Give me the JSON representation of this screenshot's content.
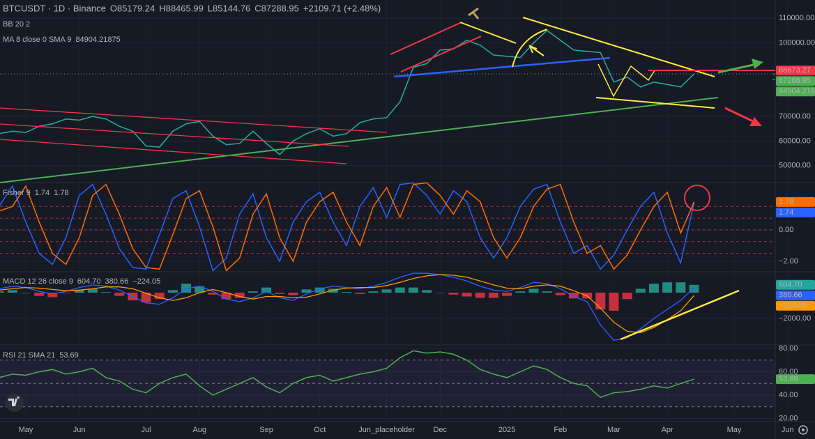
{
  "chart_data": [
    {
      "type": "line",
      "title": "BTCUSDT · 1D · Binance",
      "ohlc": [
        "O85179.24",
        "H88465.99",
        "L85144.76",
        "C87288.95"
      ],
      "change": "+2109.71 (+2.48%)",
      "indicators": [
        "BB 20 2",
        "MA 8 close 0 SMA 9"
      ],
      "ma_value": 84904.21875,
      "ma_label": "84904.218",
      "resistance": 88673.27,
      "categories": [
        null,
        null,
        "May",
        null,
        null,
        null,
        "Jun",
        null,
        null,
        null,
        null,
        "Jul",
        null,
        null,
        null,
        "Aug",
        null,
        null,
        null,
        null,
        "Sep",
        null,
        null,
        null,
        "Oct",
        null,
        null,
        null,
        null,
        "Jun_placeholder",
        null,
        null,
        null,
        "Dec",
        null,
        null,
        null,
        null,
        "2025",
        null,
        null,
        null,
        "Feb",
        null,
        null,
        null,
        "Mar",
        null,
        null,
        null,
        "Apr",
        null,
        null,
        null,
        null,
        "May",
        null,
        null,
        null,
        "Jun"
      ],
      "values": [
        63000,
        64000,
        63500,
        66000,
        67000,
        69000,
        68500,
        70000,
        69000,
        66000,
        64000,
        58000,
        57500,
        64000,
        67000,
        68000,
        62000,
        58500,
        59000,
        64000,
        59000,
        54500,
        60000,
        63000,
        65000,
        62000,
        63000,
        67500,
        69000,
        69500,
        76000,
        90000,
        91500,
        97000,
        97500,
        101000,
        99000,
        95000,
        94500,
        94000,
        100000,
        105000,
        101000,
        97000,
        96500,
        96000,
        84000,
        86000,
        82000,
        84000,
        83000,
        82000,
        87288.95,
        null,
        null,
        null,
        null,
        null,
        null,
        null
      ],
      "color": "#26a69a",
      "ylim": [
        43100,
        117400
      ],
      "yticks": [
        {
          "value": 50000,
          "label": "50000.00"
        },
        {
          "value": 60000,
          "label": "60000.00"
        },
        {
          "value": 70000,
          "label": "70000.00"
        },
        {
          "value": 100000,
          "label": "100000.00"
        },
        {
          "value": 110000,
          "label": "110000.00"
        }
      ]
    },
    {
      "type": "fisher",
      "title": "Fisher 9",
      "legend_values": [
        "1.74",
        "1.78"
      ],
      "series": [
        {
          "color": "#2962ff",
          "values": [
            1.5,
            2.8,
            0.5,
            -1.5,
            -2.2,
            -0.5,
            2.2,
            2.9,
            1.0,
            -1.2,
            -2.4,
            -2.5,
            -0.3,
            2.0,
            2.5,
            0.2,
            -2.6,
            -1.8,
            1.0,
            2.3,
            -0.5,
            -2.0,
            0.5,
            1.8,
            2.4,
            0.5,
            -1.0,
            1.5,
            2.7,
            0.8,
            2.9,
            3.0,
            2.2,
            1.0,
            2.5,
            1.8,
            -0.5,
            -1.8,
            -0.5,
            1.5,
            2.6,
            2.9,
            0.5,
            -1.5,
            -1.0,
            -2.5,
            -1.6,
            0.0,
            1.5,
            2.4,
            -0.2,
            -2.1,
            1.74,
            null,
            null,
            null,
            null,
            null,
            null,
            null
          ]
        },
        {
          "color": "#ff6d00",
          "values": [
            1.2,
            1.5,
            2.8,
            0.5,
            -1.5,
            -2.2,
            -0.5,
            2.2,
            2.9,
            1.0,
            -1.2,
            -2.4,
            -2.5,
            -0.3,
            2.0,
            2.5,
            0.2,
            -2.6,
            -1.8,
            1.0,
            2.3,
            -0.5,
            -2.0,
            0.5,
            1.8,
            2.4,
            0.5,
            -1.0,
            1.5,
            2.7,
            0.8,
            2.9,
            3.0,
            2.2,
            1.0,
            2.5,
            1.8,
            -0.5,
            -1.8,
            -0.5,
            1.5,
            2.6,
            2.9,
            0.5,
            -1.5,
            -1.0,
            -2.5,
            -1.6,
            0.0,
            1.5,
            2.4,
            -0.2,
            1.78,
            null,
            null,
            null,
            null,
            null,
            null,
            null
          ]
        }
      ],
      "levels": [
        1.5,
        0.75,
        0,
        -0.75,
        -1.5
      ],
      "ylim": [
        -2.67,
        3.02
      ],
      "yticks": [
        {
          "value": 0,
          "label": "0.00"
        },
        {
          "value": -2,
          "label": "−2.00"
        }
      ]
    },
    {
      "type": "macd",
      "title": "MACD 12 26 close 9",
      "legend_values": [
        "604.70",
        "380.66",
        "−224.05"
      ],
      "series": [
        {
          "color": "#26a69a",
          "values": [
            100,
            200,
            0,
            -250,
            -350,
            -50,
            200,
            300,
            50,
            -250,
            -600,
            -750,
            -500,
            200,
            700,
            500,
            -150,
            -500,
            -400,
            100,
            400,
            -100,
            -200,
            250,
            400,
            300,
            50,
            -100,
            100,
            250,
            400,
            400,
            200,
            0,
            -150,
            -300,
            -400,
            -400,
            -250,
            100,
            300,
            100,
            -200,
            -450,
            -450,
            -1300,
            -1400,
            -500,
            300,
            700,
            800,
            800,
            604.7,
            null,
            null,
            null,
            null,
            null,
            null,
            null
          ]
        },
        {
          "color": "#2962ff",
          "values": [
            300,
            500,
            400,
            100,
            -100,
            100,
            400,
            600,
            500,
            200,
            -300,
            -800,
            -900,
            -400,
            300,
            500,
            100,
            -500,
            -700,
            -400,
            100,
            -400,
            -600,
            -100,
            300,
            500,
            400,
            300,
            500,
            800,
            1200,
            1500,
            1500,
            1400,
            1200,
            900,
            500,
            200,
            100,
            400,
            800,
            700,
            300,
            -300,
            -700,
            -2500,
            -3700,
            -3500,
            -2800,
            -2000,
            -1300,
            -600,
            380.66,
            null,
            null,
            null,
            null,
            null,
            null,
            null
          ]
        },
        {
          "color": "#ff9800",
          "values": [
            200,
            300,
            400,
            350,
            250,
            150,
            200,
            300,
            450,
            450,
            300,
            -50,
            -400,
            -600,
            -400,
            0,
            250,
            0,
            -300,
            -500,
            -300,
            -300,
            -400,
            -350,
            -100,
            200,
            350,
            400,
            400,
            550,
            800,
            1100,
            1300,
            1400,
            1350,
            1200,
            900,
            600,
            350,
            300,
            500,
            600,
            500,
            150,
            -250,
            -1200,
            -2300,
            -3000,
            -3100,
            -2700,
            -2100,
            -1400,
            -224.05,
            null,
            null,
            null,
            null,
            null,
            null,
            null
          ]
        }
      ],
      "negative_color": "#f23645",
      "ylim": [
        -4054,
        1620
      ],
      "yticks": [
        {
          "value": -2000,
          "label": "−2000.00"
        }
      ]
    },
    {
      "type": "rsi",
      "title": "RSI 21 SMA 21",
      "legend_values": [
        "53.69"
      ],
      "values": [
        55,
        58,
        57,
        60,
        62,
        58,
        60,
        63,
        55,
        52,
        45,
        42,
        50,
        55,
        58,
        48,
        40,
        45,
        50,
        55,
        47,
        42,
        50,
        55,
        57,
        52,
        55,
        58,
        60,
        63,
        72,
        78,
        76,
        77,
        75,
        70,
        62,
        58,
        55,
        60,
        65,
        62,
        55,
        50,
        48,
        38,
        42,
        43,
        45,
        48,
        46,
        50,
        53.69,
        null,
        null,
        null,
        null,
        null,
        null,
        null
      ],
      "color": "#4caf50",
      "levels": [
        70,
        50,
        30
      ],
      "ylim": [
        17.3,
        83
      ],
      "yticks": [
        {
          "value": 20,
          "label": "20.00"
        },
        {
          "value": 40,
          "label": "40.00"
        },
        {
          "value": 60,
          "label": "60.00"
        },
        {
          "value": 80,
          "label": "80.00"
        }
      ]
    }
  ]
}
